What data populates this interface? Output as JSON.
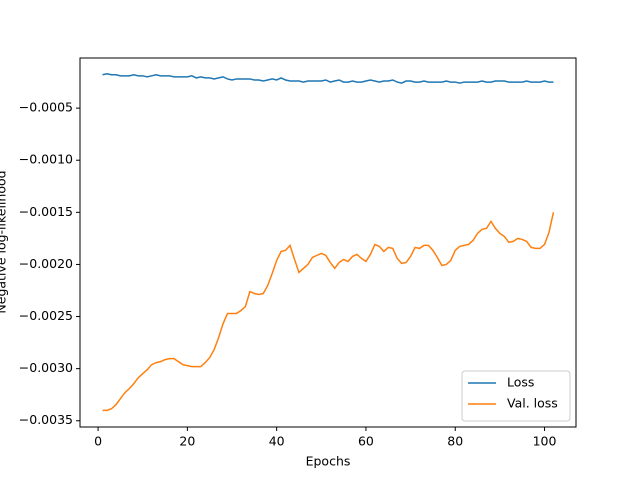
{
  "chart_data": {
    "type": "line",
    "x_label": "Epochs",
    "y_label": "Negative log-likelihood",
    "x": [
      1,
      2,
      3,
      4,
      5,
      6,
      7,
      8,
      9,
      10,
      11,
      12,
      13,
      14,
      15,
      16,
      17,
      18,
      19,
      20,
      21,
      22,
      23,
      24,
      25,
      26,
      27,
      28,
      29,
      30,
      31,
      32,
      33,
      34,
      35,
      36,
      37,
      38,
      39,
      40,
      41,
      42,
      43,
      44,
      45,
      46,
      47,
      48,
      49,
      50,
      51,
      52,
      53,
      54,
      55,
      56,
      57,
      58,
      59,
      60,
      61,
      62,
      63,
      64,
      65,
      66,
      67,
      68,
      69,
      70,
      71,
      72,
      73,
      74,
      75,
      76,
      77,
      78,
      79,
      80,
      81,
      82,
      83,
      84,
      85,
      86,
      87,
      88,
      89,
      90,
      91,
      92,
      93,
      94,
      95,
      96,
      97,
      98,
      99,
      100,
      101,
      102
    ],
    "series": [
      {
        "name": "Loss",
        "color": "#1f77b4",
        "values": [
          -0.00018,
          -0.00017,
          -0.00018,
          -0.00018,
          -0.00019,
          -0.00019,
          -0.00019,
          -0.00018,
          -0.00019,
          -0.00019,
          -0.0002,
          -0.00019,
          -0.00018,
          -0.00019,
          -0.00019,
          -0.00019,
          -0.0002,
          -0.0002,
          -0.0002,
          -0.0002,
          -0.00019,
          -0.00021,
          -0.0002,
          -0.00021,
          -0.00021,
          -0.00022,
          -0.00021,
          -0.0002,
          -0.00022,
          -0.00023,
          -0.00022,
          -0.00022,
          -0.00022,
          -0.00022,
          -0.00023,
          -0.00023,
          -0.00024,
          -0.00023,
          -0.00022,
          -0.00023,
          -0.00021,
          -0.00023,
          -0.00024,
          -0.00024,
          -0.00024,
          -0.00025,
          -0.00024,
          -0.00024,
          -0.00024,
          -0.00024,
          -0.00023,
          -0.00025,
          -0.00024,
          -0.00023,
          -0.00025,
          -0.00025,
          -0.00024,
          -0.00025,
          -0.00025,
          -0.00024,
          -0.00023,
          -0.00024,
          -0.00025,
          -0.00024,
          -0.00024,
          -0.00023,
          -0.00025,
          -0.00026,
          -0.00024,
          -0.00024,
          -0.00025,
          -0.00025,
          -0.00024,
          -0.00025,
          -0.00025,
          -0.00025,
          -0.00025,
          -0.00024,
          -0.00025,
          -0.00025,
          -0.00026,
          -0.00025,
          -0.00025,
          -0.00025,
          -0.00025,
          -0.00024,
          -0.00025,
          -0.00025,
          -0.00024,
          -0.00024,
          -0.00024,
          -0.00025,
          -0.00025,
          -0.00025,
          -0.00025,
          -0.00024,
          -0.00025,
          -0.00025,
          -0.00025,
          -0.00024,
          -0.00025,
          -0.00025
        ]
      },
      {
        "name": "Val. loss",
        "color": "#ff7f0e",
        "values": [
          -0.0034,
          -0.0034,
          -0.003385,
          -0.003346,
          -0.003288,
          -0.003231,
          -0.003192,
          -0.003144,
          -0.003087,
          -0.003048,
          -0.00301,
          -0.002962,
          -0.002942,
          -0.002933,
          -0.002913,
          -0.002904,
          -0.002904,
          -0.002933,
          -0.002962,
          -0.002971,
          -0.002981,
          -0.002981,
          -0.002981,
          -0.002942,
          -0.002894,
          -0.002817,
          -0.002702,
          -0.002567,
          -0.002471,
          -0.002471,
          -0.002471,
          -0.002442,
          -0.002404,
          -0.00226,
          -0.002279,
          -0.002288,
          -0.002279,
          -0.002202,
          -0.002087,
          -0.001962,
          -0.001875,
          -0.001865,
          -0.001817,
          -0.001952,
          -0.002077,
          -0.002038,
          -0.002,
          -0.001933,
          -0.001913,
          -0.001894,
          -0.001913,
          -0.001981,
          -0.002038,
          -0.001981,
          -0.001952,
          -0.001971,
          -0.001923,
          -0.001904,
          -0.001942,
          -0.001971,
          -0.001904,
          -0.001808,
          -0.001827,
          -0.001875,
          -0.001837,
          -0.001846,
          -0.001942,
          -0.00199,
          -0.001981,
          -0.001923,
          -0.001837,
          -0.001846,
          -0.001817,
          -0.001817,
          -0.001865,
          -0.001933,
          -0.00201,
          -0.002,
          -0.001962,
          -0.001865,
          -0.001827,
          -0.001817,
          -0.001808,
          -0.001769,
          -0.001702,
          -0.001663,
          -0.001654,
          -0.001587,
          -0.001654,
          -0.001702,
          -0.001731,
          -0.001788,
          -0.001779,
          -0.00175,
          -0.00176,
          -0.001779,
          -0.001837,
          -0.001846,
          -0.001846,
          -0.001808,
          -0.001692,
          -0.0015
        ]
      }
    ],
    "xlim": [
      -4.05,
      107.05
    ],
    "xticks": [
      0,
      20,
      40,
      60,
      80,
      100
    ],
    "ylim": [
      -0.00356,
      -1.9e-05
    ],
    "yticks": [
      {
        "value": -0.0035,
        "label": "−0.0035"
      },
      {
        "value": -0.003,
        "label": "−0.0030"
      },
      {
        "value": -0.0025,
        "label": "−0.0025"
      },
      {
        "value": -0.002,
        "label": "−0.0020"
      },
      {
        "value": -0.0015,
        "label": "−0.0015"
      },
      {
        "value": -0.001,
        "label": "−0.0010"
      },
      {
        "value": -0.0005,
        "label": "−0.0005"
      }
    ],
    "legend": "lower right",
    "grid": false
  }
}
